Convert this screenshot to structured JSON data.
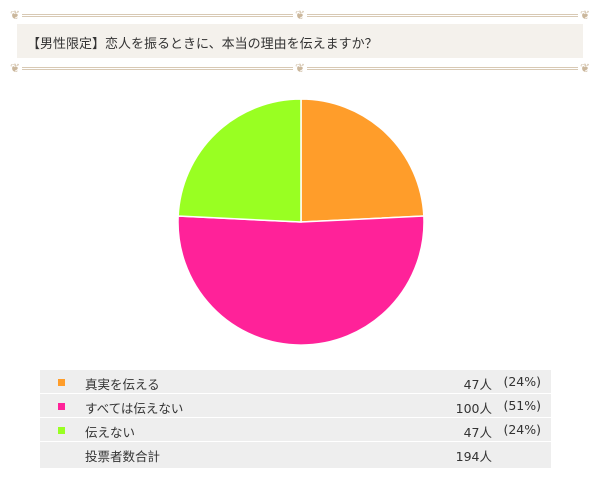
{
  "question": "【男性限定】恋人を振るときに、本当の理由を伝えますか？",
  "chart_data": {
    "type": "pie",
    "slices": [
      {
        "label": "真実を伝える",
        "value": 47,
        "count_text": "47人",
        "percent_text": "(24%)",
        "color": "#ff9d2a"
      },
      {
        "label": "すべては伝えない",
        "value": 100,
        "count_text": "100人",
        "percent_text": "(51%)",
        "color": "#ff2299"
      },
      {
        "label": "伝えない",
        "value": 47,
        "count_text": "47人",
        "percent_text": "(24%)",
        "color": "#99ff22"
      }
    ],
    "total_label": "投票者数合計",
    "total_text": "194人"
  }
}
